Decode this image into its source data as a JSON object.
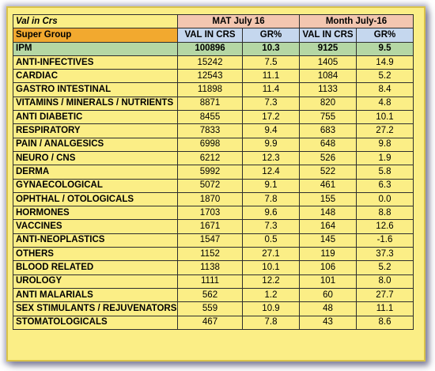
{
  "header": {
    "units": "Val in Crs",
    "period1": "MAT July 16",
    "period2": "Month July-16",
    "super_group": "Super Group",
    "val_label": "VAL IN CRS",
    "gr_label": "GR%"
  },
  "ipm": {
    "name": "IPM",
    "mat_val": "100896",
    "mat_gr": "10.3",
    "mon_val": "9125",
    "mon_gr": "9.5"
  },
  "rows": [
    {
      "name": "ANTI-INFECTIVES",
      "mat_val": "15242",
      "mat_gr": "7.5",
      "mon_val": "1405",
      "mon_gr": "14.9"
    },
    {
      "name": "CARDIAC",
      "mat_val": "12543",
      "mat_gr": "11.1",
      "mon_val": "1084",
      "mon_gr": "5.2"
    },
    {
      "name": "GASTRO INTESTINAL",
      "mat_val": "11898",
      "mat_gr": "11.4",
      "mon_val": "1133",
      "mon_gr": "8.4"
    },
    {
      "name": "VITAMINS / MINERALS / NUTRIENTS",
      "mat_val": "8871",
      "mat_gr": "7.3",
      "mon_val": "820",
      "mon_gr": "4.8"
    },
    {
      "name": "ANTI DIABETIC",
      "mat_val": "8455",
      "mat_gr": "17.2",
      "mon_val": "755",
      "mon_gr": "10.1"
    },
    {
      "name": "RESPIRATORY",
      "mat_val": "7833",
      "mat_gr": "9.4",
      "mon_val": "683",
      "mon_gr": "27.2"
    },
    {
      "name": "PAIN / ANALGESICS",
      "mat_val": "6998",
      "mat_gr": "9.9",
      "mon_val": "648",
      "mon_gr": "9.8"
    },
    {
      "name": "NEURO / CNS",
      "mat_val": "6212",
      "mat_gr": "12.3",
      "mon_val": "526",
      "mon_gr": "1.9"
    },
    {
      "name": "DERMA",
      "mat_val": "5992",
      "mat_gr": "12.4",
      "mon_val": "522",
      "mon_gr": "5.8"
    },
    {
      "name": "GYNAECOLOGICAL",
      "mat_val": "5072",
      "mat_gr": "9.1",
      "mon_val": "461",
      "mon_gr": "6.3"
    },
    {
      "name": "OPHTHAL / OTOLOGICALS",
      "mat_val": "1870",
      "mat_gr": "7.8",
      "mon_val": "155",
      "mon_gr": "0.0"
    },
    {
      "name": "HORMONES",
      "mat_val": "1703",
      "mat_gr": "9.6",
      "mon_val": "148",
      "mon_gr": "8.8"
    },
    {
      "name": "VACCINES",
      "mat_val": "1671",
      "mat_gr": "7.3",
      "mon_val": "164",
      "mon_gr": "12.6"
    },
    {
      "name": "ANTI-NEOPLASTICS",
      "mat_val": "1547",
      "mat_gr": "0.5",
      "mon_val": "145",
      "mon_gr": "-1.6"
    },
    {
      "name": "OTHERS",
      "mat_val": "1152",
      "mat_gr": "27.1",
      "mon_val": "119",
      "mon_gr": "37.3"
    },
    {
      "name": "BLOOD RELATED",
      "mat_val": "1138",
      "mat_gr": "10.1",
      "mon_val": "106",
      "mon_gr": "5.2"
    },
    {
      "name": "UROLOGY",
      "mat_val": "1111",
      "mat_gr": "12.2",
      "mon_val": "101",
      "mon_gr": "8.0"
    },
    {
      "name": "ANTI MALARIALS",
      "mat_val": "562",
      "mat_gr": "1.2",
      "mon_val": "60",
      "mon_gr": "27.7"
    },
    {
      "name": "SEX STIMULANTS / REJUVENATORS",
      "mat_val": "559",
      "mat_gr": "10.9",
      "mon_val": "48",
      "mon_gr": "11.1"
    },
    {
      "name": "STOMATOLOGICALS",
      "mat_val": "467",
      "mat_gr": "7.8",
      "mon_val": "43",
      "mon_gr": "8.6"
    }
  ]
}
